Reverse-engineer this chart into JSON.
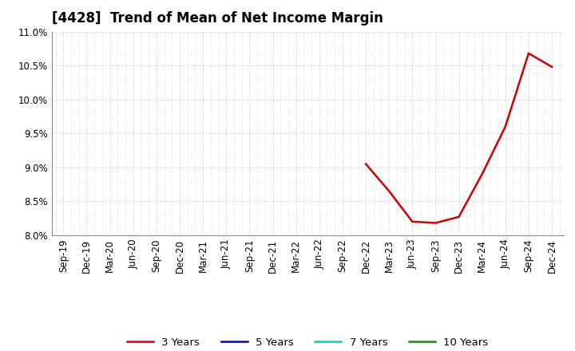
{
  "title": "[4428]  Trend of Mean of Net Income Margin",
  "background_color": "#ffffff",
  "plot_bg_color": "#ffffff",
  "grid_color": "#bbbbbb",
  "ylim": [
    0.08,
    0.11
  ],
  "yticks": [
    0.08,
    0.085,
    0.09,
    0.095,
    0.1,
    0.105,
    0.11
  ],
  "ytick_labels": [
    "8.0%",
    "8.5%",
    "9.0%",
    "9.5%",
    "10.0%",
    "10.5%",
    "11.0%"
  ],
  "xtick_labels": [
    "Sep-19",
    "Dec-19",
    "Mar-20",
    "Jun-20",
    "Sep-20",
    "Dec-20",
    "Mar-21",
    "Jun-21",
    "Sep-21",
    "Dec-21",
    "Mar-22",
    "Jun-22",
    "Sep-22",
    "Dec-22",
    "Mar-23",
    "Jun-23",
    "Sep-23",
    "Dec-23",
    "Mar-24",
    "Jun-24",
    "Sep-24",
    "Dec-24"
  ],
  "line_3y": {
    "x_indices": [
      13,
      14,
      15,
      16,
      17,
      18,
      19,
      20,
      21
    ],
    "y_values": [
      0.0905,
      0.0865,
      0.082,
      0.0818,
      0.0827,
      0.089,
      0.096,
      0.1068,
      0.1048
    ],
    "color": "#cc0000",
    "linewidth": 1.8,
    "label": "3 Years"
  },
  "line_5y": {
    "color": "#0000cc",
    "linewidth": 1.8,
    "label": "5 Years"
  },
  "line_7y": {
    "color": "#00cccc",
    "linewidth": 1.8,
    "label": "7 Years"
  },
  "line_10y": {
    "color": "#009900",
    "linewidth": 1.8,
    "label": "10 Years"
  },
  "title_fontsize": 12,
  "tick_fontsize": 8.5,
  "legend_fontsize": 9.5
}
